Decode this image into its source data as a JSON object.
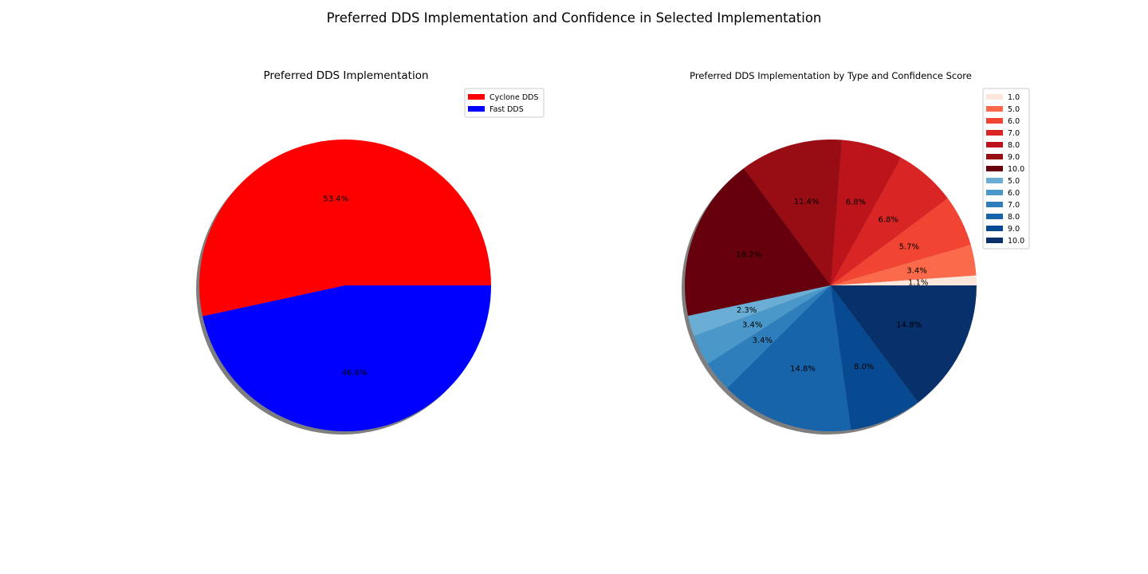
{
  "figure_title": "Preferred DDS Implementation and Confidence in Selected Implementation",
  "chart_data": [
    {
      "type": "pie",
      "title": "Preferred DDS Implementation",
      "legend_position": "top-right",
      "shadow": true,
      "start_angle": 0,
      "slices": [
        {
          "label": "Cyclone DDS",
          "value": 53.4,
          "pct_label": "53.4%",
          "color": "#ff0000"
        },
        {
          "label": "Fast DDS",
          "value": 46.6,
          "pct_label": "46.6%",
          "color": "#0000ff"
        }
      ]
    },
    {
      "type": "pie",
      "title": "Preferred DDS Implementation by Type and Confidence Score",
      "legend_position": "top-right",
      "shadow": true,
      "start_angle": 0,
      "slices": [
        {
          "label": "1.0",
          "value": 1.1,
          "pct_label": "1.1%",
          "color": "#fee6da"
        },
        {
          "label": "5.0",
          "value": 3.4,
          "pct_label": "3.4%",
          "color": "#fb6a4a"
        },
        {
          "label": "6.0",
          "value": 5.7,
          "pct_label": "5.7%",
          "color": "#f14432"
        },
        {
          "label": "7.0",
          "value": 6.8,
          "pct_label": "6.8%",
          "color": "#d92523"
        },
        {
          "label": "8.0",
          "value": 6.8,
          "pct_label": "6.8%",
          "color": "#bc141a"
        },
        {
          "label": "9.0",
          "value": 11.4,
          "pct_label": "11.4%",
          "color": "#980c13"
        },
        {
          "label": "10.0",
          "value": 18.2,
          "pct_label": "18.2%",
          "color": "#67000d"
        },
        {
          "label": "5.0",
          "value": 2.3,
          "pct_label": "2.3%",
          "color": "#6aaed6"
        },
        {
          "label": "6.0",
          "value": 3.4,
          "pct_label": "3.4%",
          "color": "#4a98c9"
        },
        {
          "label": "7.0",
          "value": 3.4,
          "pct_label": "3.4%",
          "color": "#2e7ebc"
        },
        {
          "label": "8.0",
          "value": 14.8,
          "pct_label": "14.8%",
          "color": "#1764ab"
        },
        {
          "label": "9.0",
          "value": 8.0,
          "pct_label": "8.0%",
          "color": "#084a91"
        },
        {
          "label": "10.0",
          "value": 14.8,
          "pct_label": "14.8%",
          "color": "#08306b"
        }
      ]
    }
  ]
}
